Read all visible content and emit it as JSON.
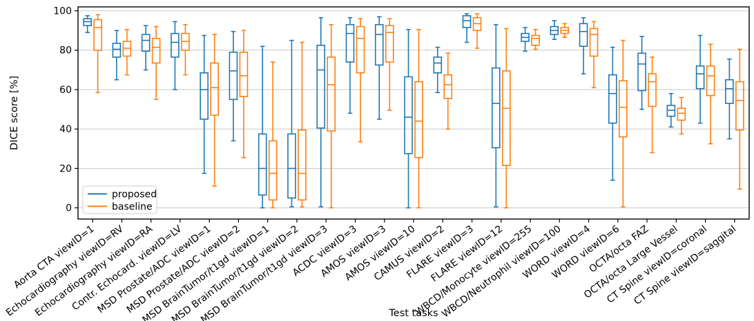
{
  "chart_data": {
    "type": "boxplot",
    "title": "",
    "xlabel": "Test tasks",
    "ylabel": "DICE score [%]",
    "ylim": [
      -5.7,
      102
    ],
    "yticks": [
      0,
      20,
      40,
      60,
      80,
      100
    ],
    "grid": "horizontal",
    "legend": {
      "position": "lower-left",
      "entries": [
        {
          "label": "proposed",
          "color": "#1f77b4"
        },
        {
          "label": "baseline",
          "color": "#ff7f0e"
        }
      ]
    },
    "colors": {
      "proposed": "#1f77b4",
      "baseline": "#ff7f0e",
      "grid": "#c8c8c8",
      "spine": "#000000",
      "legend_border": "#cccccc"
    },
    "categories": [
      "Aorta CTA viewID=1",
      "Echocardiography viewID=RV",
      "Echocardiography viewID=RA",
      "Contr. Echocard. viewID=LV",
      "MSD Prostate/ADC viewID=1",
      "MSD Prostate/ADC viewID=2",
      "MSD BrainTumor/t1gd viewID=1",
      "MSD BrainTumor/t1gd viewID=2",
      "MSD BrainTumor/t1gd viewID=3",
      "ACDC viewID=3",
      "AMOS viewID=3",
      "AMOS viewID=10",
      "CAMUS viewID=2",
      "FLARE viewID=3",
      "FLARE viewID=12",
      "WBCD/Monocyte viewID=255",
      "WBCD/Neutrophil viewID=100",
      "WORD viewID=4",
      "WORD viewID=6",
      "OCTA/octa FAZ",
      "OCTA/octa Large Vessel",
      "CT Spine viewID=coronal",
      "CT Spine viewID=saggital"
    ],
    "box_stat_order": [
      "whislo",
      "q1",
      "med",
      "q3",
      "whishi"
    ],
    "series": [
      {
        "name": "proposed",
        "color": "#1f77b4",
        "boxes": [
          [
            89,
            92.5,
            94.5,
            96,
            97.5
          ],
          [
            65,
            76.5,
            80.5,
            83.5,
            90
          ],
          [
            70,
            79.5,
            85,
            88,
            92.5
          ],
          [
            60,
            76.5,
            84,
            88.5,
            94.5
          ],
          [
            17.5,
            45,
            60,
            68.5,
            87.5
          ],
          [
            34,
            55,
            69.5,
            79,
            89.5
          ],
          [
            0,
            6.5,
            20,
            37.5,
            82
          ],
          [
            0.5,
            5,
            20,
            37.5,
            85
          ],
          [
            0.5,
            40.5,
            70,
            82.5,
            96.5
          ],
          [
            48,
            74,
            88.5,
            93,
            96.5
          ],
          [
            45,
            72.5,
            88,
            93,
            97
          ],
          [
            0,
            27.5,
            46,
            66.5,
            90.5
          ],
          [
            58.5,
            68.5,
            73.5,
            76.5,
            81.5
          ],
          [
            84,
            91.5,
            95,
            97.5,
            98.5
          ],
          [
            0.5,
            30.5,
            53,
            71,
            93
          ],
          [
            79.5,
            84.5,
            86.5,
            88.5,
            91.5
          ],
          [
            85.5,
            88,
            90,
            92,
            95
          ],
          [
            68,
            82,
            89.5,
            93.5,
            96.5
          ],
          [
            14,
            43,
            58,
            67.5,
            81.5
          ],
          [
            50,
            59.5,
            73,
            78.5,
            87
          ],
          [
            41,
            46.5,
            49.5,
            52,
            58
          ],
          [
            43,
            60.5,
            68,
            72,
            87.5
          ],
          [
            35,
            53,
            60.5,
            65,
            75.5
          ]
        ]
      },
      {
        "name": "baseline",
        "color": "#ff7f0e",
        "boxes": [
          [
            58.5,
            80,
            91.5,
            95.5,
            98
          ],
          [
            67.5,
            77,
            81,
            84.5,
            90.5
          ],
          [
            55,
            73.5,
            81.5,
            86,
            92
          ],
          [
            67.5,
            80,
            84.5,
            88.5,
            93
          ],
          [
            11,
            47,
            61,
            73.5,
            88
          ],
          [
            25.5,
            56.5,
            67,
            79,
            90
          ],
          [
            0,
            4,
            17.5,
            34,
            74
          ],
          [
            0.5,
            4,
            17.5,
            39.5,
            84
          ],
          [
            0,
            39,
            62.5,
            76.5,
            93
          ],
          [
            33.5,
            68.5,
            86,
            92,
            96
          ],
          [
            49.5,
            74,
            89,
            92.5,
            96
          ],
          [
            0,
            25.5,
            44,
            64,
            90.5
          ],
          [
            40,
            55.5,
            62.5,
            67.5,
            78.5
          ],
          [
            81,
            90,
            93.5,
            96.5,
            98.5
          ],
          [
            0,
            21.5,
            50.5,
            69.5,
            91
          ],
          [
            80.5,
            82.5,
            86,
            87.5,
            90.5
          ],
          [
            86.5,
            88.5,
            90,
            91.5,
            93.5
          ],
          [
            61,
            77,
            88,
            91,
            94.5
          ],
          [
            0.5,
            36,
            51,
            64.5,
            85
          ],
          [
            28,
            51.5,
            64,
            68,
            76.5
          ],
          [
            37.5,
            44.5,
            48,
            50.5,
            56
          ],
          [
            32.5,
            57,
            67,
            72,
            83
          ],
          [
            9.5,
            39.5,
            54.5,
            64,
            80.5
          ]
        ]
      }
    ]
  }
}
